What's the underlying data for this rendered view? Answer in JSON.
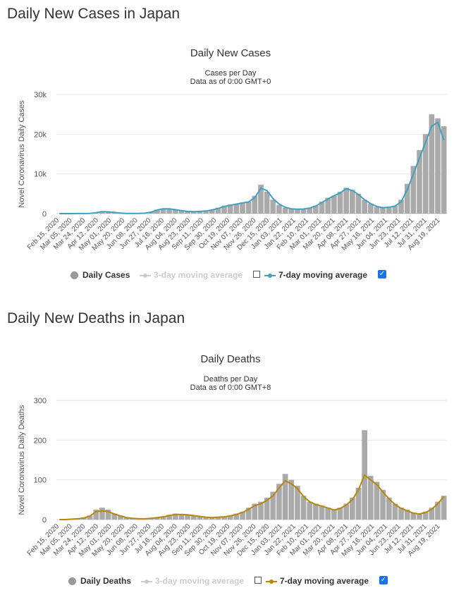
{
  "cases_section": {
    "heading": "Daily New Cases in Japan",
    "legend": {
      "bars": "Daily Cases",
      "ma3": "3-day moving average",
      "ma7": "7-day moving average"
    }
  },
  "deaths_section": {
    "heading": "Daily New Deaths in Japan",
    "legend": {
      "bars": "Daily Deaths",
      "ma3": "3-day moving average",
      "ma7": "7-day moving average"
    }
  },
  "colors": {
    "bars": "#aaaaaa",
    "cases_line": "#40a0c0",
    "deaths_line": "#b8860b",
    "grid": "#e6e6e6",
    "checkbox": "#1a73e8",
    "legend_disabled": "#cccccc"
  },
  "chart_data": [
    {
      "type": "bar",
      "title": "Daily New Cases",
      "subtitle_lines": [
        "Cases per Day",
        "Data as of 0:00 GMT+0"
      ],
      "xlabel": "",
      "ylabel": "Novel Coronavirus Daily Cases",
      "ylim": [
        0,
        30000
      ],
      "yticks": [
        0,
        10000,
        20000,
        30000
      ],
      "ytick_labels": [
        "0",
        "10k",
        "20k",
        "30k"
      ],
      "grid": true,
      "legend_position": "bottom",
      "x_tick_labels": [
        "Feb 15, 2020",
        "Mar 05, 2020",
        "Mar 24, 2020",
        "Apr 12, 2020",
        "May 01, 2020",
        "May 20, 2020",
        "Jun 08, 2020",
        "Jun 27, 2020",
        "Jul 16, 2020",
        "Aug 04, 2020",
        "Aug 23, 2020",
        "Sep 11, 2020",
        "Sep 30, 2020",
        "Oct 19, 2020",
        "Nov 07, 2020",
        "Nov 26, 2020",
        "Dec 15, 2020",
        "Jan 03, 2021",
        "Jan 22, 2021",
        "Feb 10, 2021",
        "Mar 01, 2021",
        "Mar 20, 2021",
        "Apr 08, 2021",
        "Apr 27, 2021",
        "May 16, 2021",
        "Jun 04, 2021",
        "Jun 23, 2021",
        "Jul 12, 2021",
        "Jul 31, 2021",
        "Aug 19, 2021"
      ],
      "series": [
        {
          "name": "Daily Cases",
          "kind": "bar",
          "values": [
            0,
            0,
            0,
            10,
            30,
            40,
            300,
            600,
            500,
            300,
            150,
            50,
            40,
            60,
            100,
            400,
            1000,
            1300,
            1200,
            1000,
            700,
            500,
            500,
            600,
            700,
            1000,
            1500,
            2000,
            2300,
            2500,
            2800,
            3000,
            4500,
            7300,
            5500,
            3500,
            2200,
            1500,
            1200,
            1100,
            1200,
            1500,
            2000,
            3000,
            4000,
            4500,
            5500,
            6500,
            6000,
            5000,
            3500,
            2500,
            1700,
            1500,
            1700,
            2000,
            3500,
            7500,
            12000,
            16000,
            20000,
            25000,
            24000,
            22000
          ]
        },
        {
          "name": "7-day moving average",
          "kind": "line",
          "values": [
            0,
            0,
            0,
            10,
            25,
            40,
            250,
            500,
            450,
            300,
            150,
            60,
            40,
            60,
            100,
            350,
            900,
            1200,
            1200,
            1000,
            750,
            550,
            500,
            550,
            650,
            900,
            1300,
            1800,
            2100,
            2400,
            2700,
            2950,
            4000,
            6400,
            5800,
            3800,
            2400,
            1600,
            1200,
            1100,
            1150,
            1400,
            1900,
            2800,
            3700,
            4500,
            5200,
            6300,
            5800,
            4800,
            3500,
            2500,
            1800,
            1500,
            1600,
            1900,
            3000,
            6000,
            10000,
            14000,
            18000,
            22000,
            23000,
            18500
          ]
        }
      ]
    },
    {
      "type": "bar",
      "title": "Daily Deaths",
      "subtitle_lines": [
        "Deaths per Day",
        "Data as of 0:00 GMT+8"
      ],
      "xlabel": "",
      "ylabel": "Novel Coronavirus Daily Deaths",
      "ylim": [
        0,
        300
      ],
      "yticks": [
        0,
        100,
        200,
        300
      ],
      "ytick_labels": [
        "0",
        "100",
        "200",
        "300"
      ],
      "grid": true,
      "legend_position": "bottom",
      "x_tick_labels": [
        "Feb 15, 2020",
        "Mar 05, 2020",
        "Mar 24, 2020",
        "Apr 12, 2020",
        "May 01, 2020",
        "May 20, 2020",
        "Jun 08, 2020",
        "Jun 27, 2020",
        "Jul 16, 2020",
        "Aug 04, 2020",
        "Aug 23, 2020",
        "Sep 11, 2020",
        "Sep 30, 2020",
        "Oct 19, 2020",
        "Nov 07, 2020",
        "Nov 26, 2020",
        "Dec 15, 2020",
        "Jan 03, 2021",
        "Jan 22, 2021",
        "Feb 10, 2021",
        "Mar 01, 2021",
        "Mar 20, 2021",
        "Apr 08, 2021",
        "Apr 27, 2021",
        "May 16, 2021",
        "Jun 04, 2021",
        "Jun 23, 2021",
        "Jul 12, 2021",
        "Jul 31, 2021",
        "Aug 19, 2021"
      ],
      "series": [
        {
          "name": "Daily Deaths",
          "kind": "bar",
          "values": [
            0,
            0,
            1,
            2,
            5,
            10,
            25,
            30,
            25,
            15,
            10,
            5,
            3,
            2,
            2,
            3,
            5,
            8,
            12,
            15,
            14,
            12,
            10,
            8,
            6,
            5,
            6,
            8,
            10,
            15,
            20,
            30,
            40,
            45,
            55,
            70,
            90,
            115,
            100,
            85,
            60,
            45,
            40,
            35,
            30,
            25,
            30,
            40,
            55,
            80,
            225,
            110,
            95,
            75,
            55,
            40,
            30,
            25,
            18,
            15,
            20,
            30,
            45,
            60
          ]
        },
        {
          "name": "7-day moving average",
          "kind": "line",
          "values": [
            0,
            0,
            1,
            2,
            4,
            9,
            20,
            22,
            20,
            14,
            9,
            5,
            3,
            2,
            2,
            3,
            5,
            7,
            10,
            13,
            13,
            12,
            10,
            8,
            6,
            5,
            6,
            7,
            9,
            13,
            18,
            26,
            35,
            40,
            48,
            60,
            80,
            98,
            90,
            78,
            58,
            45,
            38,
            34,
            29,
            24,
            28,
            37,
            50,
            75,
            112,
            100,
            88,
            70,
            52,
            38,
            28,
            22,
            16,
            14,
            18,
            26,
            40,
            58
          ]
        }
      ]
    }
  ]
}
